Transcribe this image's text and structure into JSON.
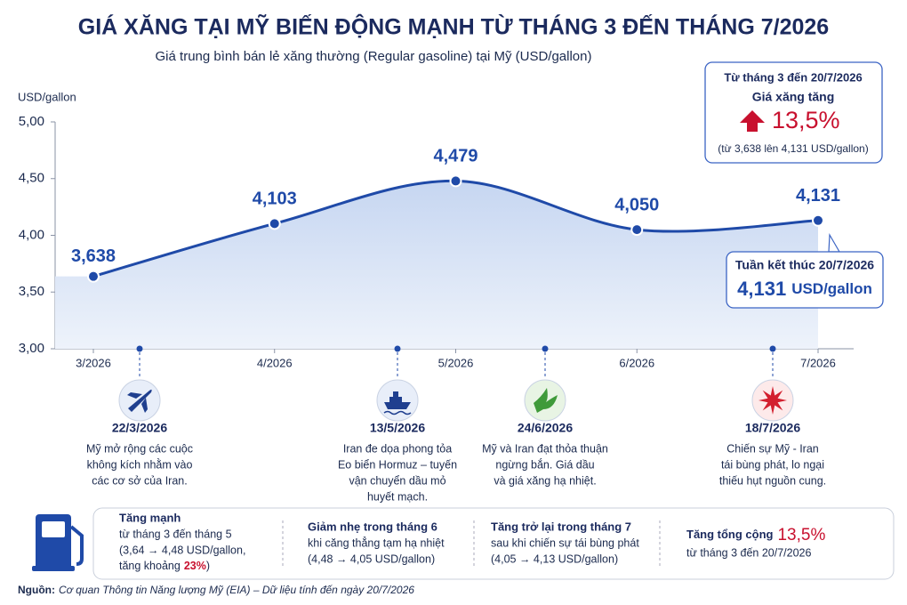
{
  "chart_data": {
    "type": "line",
    "title": "GIÁ XĂNG TẠI MỸ BIẾN ĐỘNG MẠNH TỪ THÁNG 3 ĐẾN THÁNG 7/2026",
    "subtitle": "Giá trung bình bán lẻ xăng thường (Regular gasoline) tại Mỹ (USD/gallon)",
    "y_label": "USD/gallon",
    "categories": [
      "3/2026",
      "4/2026",
      "5/2026",
      "6/2026",
      "7/2026"
    ],
    "series": [
      {
        "name": "Giá xăng",
        "color": "#1f4aa8",
        "values": [
          3.638,
          4.103,
          4.479,
          4.05,
          4.131
        ],
        "value_labels": [
          "3,638",
          "4,103",
          "4,479",
          "4,050",
          "4,131"
        ]
      }
    ],
    "ylim": [
      3,
      5
    ],
    "yticks": [
      {
        "value": 3,
        "label": "3,00"
      },
      {
        "value": 3.5,
        "label": "3,50"
      },
      {
        "value": 4,
        "label": "4,00"
      },
      {
        "value": 4.5,
        "label": "4,50"
      },
      {
        "value": 5,
        "label": "5,00"
      }
    ],
    "grid": false
  },
  "callouts": {
    "change": {
      "period": "Từ tháng 3 đến 20/7/2026",
      "label": "Giá xăng tăng",
      "value": "13,5%",
      "detail": "(từ 3,638 lên 4,131 USD/gallon)"
    },
    "latest": {
      "label": "Tuần kết thúc 20/7/2026",
      "value": "4,131",
      "unit": "USD/gallon"
    }
  },
  "events": [
    {
      "date": "22/3/2026",
      "lines": [
        "Mỹ mở rộng các cuộc",
        "không kích nhằm vào",
        "các cơ sở của Iran."
      ]
    },
    {
      "date": "13/5/2026",
      "lines": [
        "Iran đe dọa phong tỏa",
        "Eo biển Hormuz – tuyến",
        "vận chuyển dầu mỏ",
        "huyết mạch."
      ]
    },
    {
      "date": "24/6/2026",
      "lines": [
        "Mỹ và Iran đạt thỏa thuận",
        "ngừng bắn. Giá dầu",
        "và giá xăng hạ nhiệt."
      ]
    },
    {
      "date": "18/7/2026",
      "lines": [
        "Chiến sự Mỹ - Iran",
        "tái bùng phát, lo ngại",
        "thiếu hụt nguồn cung."
      ]
    }
  ],
  "summary": [
    {
      "heading": "Tăng mạnh",
      "lines": [
        "từ tháng 3 đến tháng 5",
        "(3,64 → 4,48 USD/gallon,"
      ],
      "last": {
        "before": "tăng khoảng",
        "highlight": "23%",
        "after": ")"
      }
    },
    {
      "heading": "Giảm nhẹ trong tháng 6",
      "lines": [
        "khi căng thẳng tạm hạ nhiệt",
        "(4,48 → 4,05 USD/gallon)"
      ]
    },
    {
      "heading": "Tăng trở lại trong tháng 7",
      "lines": [
        "sau khi chiến sự tái bùng phát",
        "(4,05 → 4,13 USD/gallon)"
      ]
    },
    {
      "heading": "Tăng tổng cộng",
      "highlight": "13,5%",
      "lines": [
        "từ tháng 3 đến 20/7/2026"
      ]
    }
  ],
  "source": {
    "label": "Nguồn:",
    "text": "Cơ quan Thông tin Năng lượng Mỹ (EIA) – Dữ liệu tính đến ngày 20/7/2026"
  }
}
